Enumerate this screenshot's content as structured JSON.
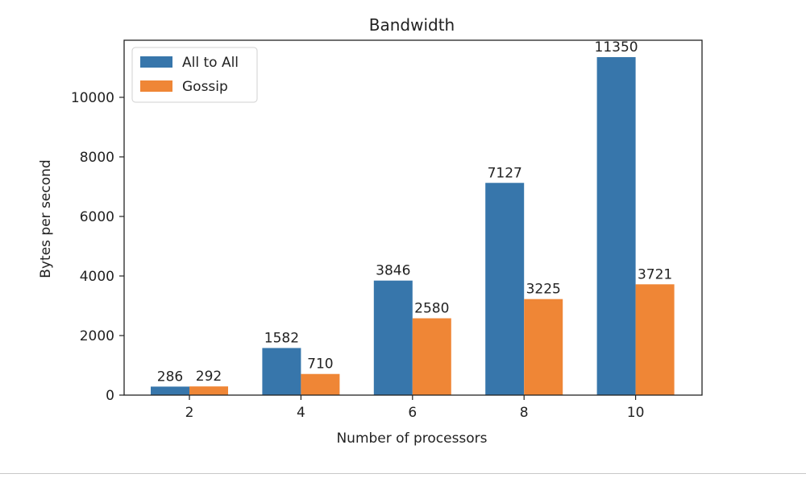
{
  "chart_data": {
    "type": "bar",
    "title": "Bandwidth",
    "xlabel": "Number of processors",
    "ylabel": "Bytes per second",
    "categories": [
      "2",
      "4",
      "6",
      "8",
      "10"
    ],
    "series": [
      {
        "name": "All to All",
        "color": "#3776ab",
        "values": [
          286,
          1582,
          3846,
          7127,
          11350
        ]
      },
      {
        "name": "Gossip",
        "color": "#ef8636",
        "values": [
          292,
          710,
          2580,
          3225,
          3721
        ]
      }
    ],
    "ylim": [
      0,
      11917
    ],
    "yticks": [
      0,
      2000,
      4000,
      6000,
      8000,
      10000
    ],
    "grid": false,
    "legend_position": "top-left"
  }
}
